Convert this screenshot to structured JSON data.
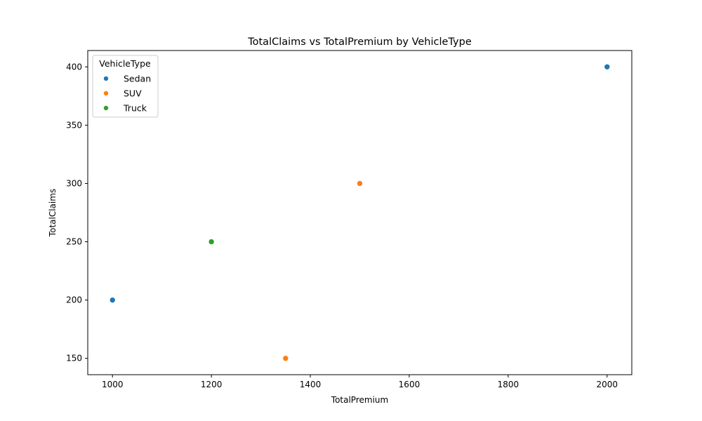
{
  "chart_data": {
    "type": "scatter",
    "title": "TotalClaims vs TotalPremium by VehicleType",
    "xlabel": "TotalPremium",
    "ylabel": "TotalClaims",
    "xlim": [
      950,
      2050
    ],
    "ylim": [
      136,
      414
    ],
    "xticks": [
      1000,
      1200,
      1400,
      1600,
      1800,
      2000
    ],
    "yticks": [
      150,
      200,
      250,
      300,
      350,
      400
    ],
    "grid": false,
    "legend": {
      "title": "VehicleType",
      "placement": "top-left"
    },
    "series": [
      {
        "name": "Sedan",
        "color": "#1f77b4",
        "points": [
          {
            "x": 1000,
            "y": 200
          },
          {
            "x": 2000,
            "y": 400
          }
        ]
      },
      {
        "name": "SUV",
        "color": "#ff7f0e",
        "points": [
          {
            "x": 1500,
            "y": 300
          },
          {
            "x": 1350,
            "y": 150
          }
        ]
      },
      {
        "name": "Truck",
        "color": "#2ca02c",
        "points": [
          {
            "x": 1200,
            "y": 250
          }
        ]
      }
    ]
  }
}
